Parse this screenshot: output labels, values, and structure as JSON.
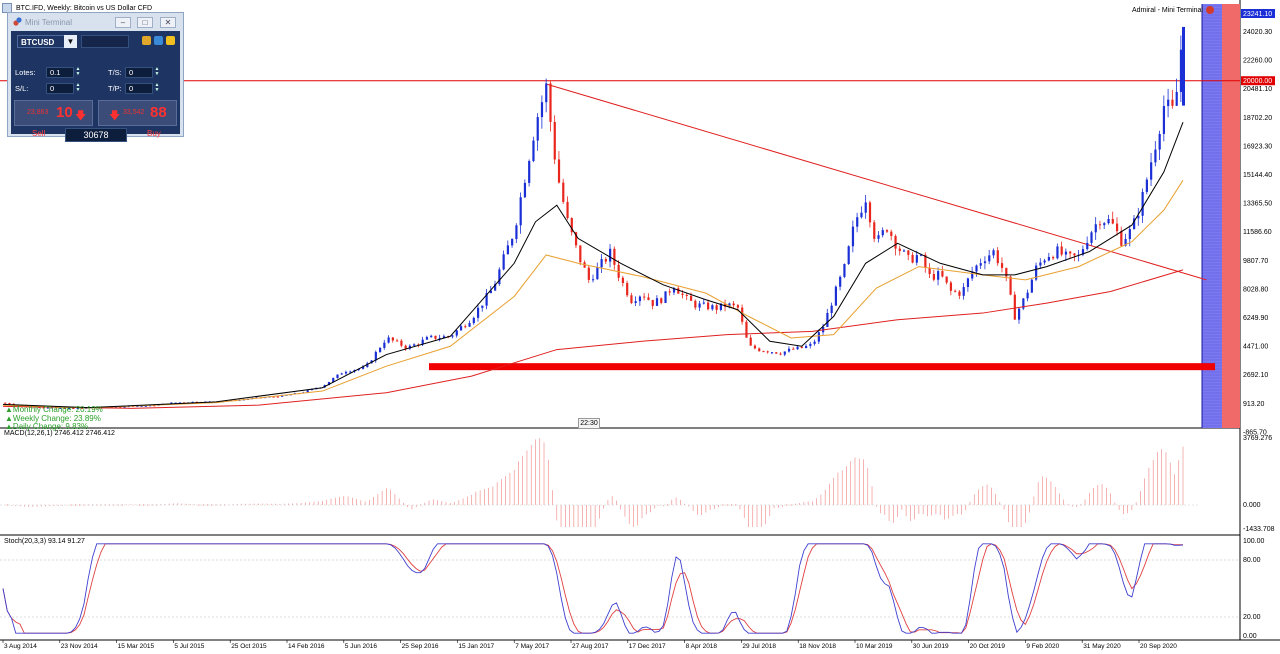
{
  "window": {
    "title": "BTC.IFD, Weekly:  Bitcoin vs US Dollar CFD",
    "corner_label": "Admiral - Mini Terminal"
  },
  "price_axis": {
    "labels": [
      "24020.30",
      "22260.00",
      "20481.10",
      "18702.20",
      "16923.30",
      "15144.40",
      "13365.50",
      "11586.60",
      "9807.70",
      "8028.80",
      "6249.90",
      "4471.00",
      "2692.10",
      "913.20",
      "-865.70"
    ],
    "current_price": "23241.10",
    "line_price": "20000.00",
    "current_color": "#1a2fd6",
    "line_color": "#e00000"
  },
  "date_axis": {
    "labels": [
      "3 Aug 2014",
      "23 Nov 2014",
      "15 Mar 2015",
      "5 Jul 2015",
      "25 Oct 2015",
      "14 Feb 2016",
      "5 Jun 2016",
      "25 Sep 2016",
      "15 Jan 2017",
      "7 May 2017",
      "27 Aug 2017",
      "17 Dec 2017",
      "8 Apr 2018",
      "29 Jul 2018",
      "18 Nov 2018",
      "10 Mar 2019",
      "30 Jun 2019",
      "20 Oct 2019",
      "9 Feb 2020",
      "31 May 2020",
      "20 Sep 2020"
    ]
  },
  "time_tag": "22:30",
  "stats": {
    "monthly": "▲Monthly Change: 20.19%",
    "weekly": "▲Weekly Change: 23.89%",
    "daily": "▲Daily Change: 9.83%"
  },
  "macd": {
    "label": "MACD(12,26,1) 2746.412 2746.412",
    "axis": [
      "3769.276",
      "0.000",
      "-1433.708"
    ]
  },
  "stoch": {
    "label": "Stoch(20,3,3) 93.14 91.27",
    "axis": [
      "100.00",
      "80.00",
      "20.00",
      "0.00"
    ]
  },
  "mini_terminal": {
    "title": "Mini Terminal",
    "symbol": "BTCUSD",
    "lots_label": "Lotes:",
    "lots_value": "0.1",
    "ts_label": "T/S:",
    "ts_value": "0",
    "sl_label": "S/L:",
    "sl_value": "0",
    "tp_label": "T/P:",
    "tp_value": "0",
    "sell_small": "23,863",
    "sell_big": "10",
    "buy_small": "33,542",
    "buy_big": "88",
    "sell_label": "Sell",
    "buy_label": "Buy",
    "volume": "30678"
  },
  "chart_data": {
    "type": "candlestick",
    "x_labels": [
      "3 Aug 2014",
      "23 Nov 2014",
      "15 Mar 2015",
      "5 Jul 2015",
      "25 Oct 2015",
      "14 Feb 2016",
      "5 Jun 2016",
      "25 Sep 2016",
      "15 Jan 2017",
      "7 May 2017",
      "27 Aug 2017",
      "17 Dec 2017",
      "8 Apr 2018",
      "29 Jul 2018",
      "18 Nov 2018",
      "10 Mar 2019",
      "30 Jun 2019",
      "20 Oct 2019",
      "9 Feb 2020",
      "31 May 2020",
      "20 Sep 2020"
    ],
    "ylim": [
      -865.7,
      24020.3
    ],
    "price_path": [
      [
        0,
        600
      ],
      [
        10,
        420
      ],
      [
        20,
        300
      ],
      [
        30,
        250
      ],
      [
        40,
        300
      ],
      [
        50,
        330
      ],
      [
        60,
        400
      ],
      [
        70,
        420
      ],
      [
        80,
        600
      ],
      [
        90,
        650
      ],
      [
        100,
        660
      ],
      [
        110,
        760
      ],
      [
        120,
        900
      ],
      [
        130,
        1000
      ],
      [
        140,
        1200
      ],
      [
        150,
        1600
      ],
      [
        160,
        2500
      ],
      [
        170,
        2700
      ],
      [
        180,
        4500
      ],
      [
        190,
        3900
      ],
      [
        200,
        4500
      ],
      [
        210,
        4600
      ],
      [
        220,
        5700
      ],
      [
        230,
        7500
      ],
      [
        240,
        11000
      ],
      [
        250,
        17500
      ],
      [
        255,
        19600
      ],
      [
        260,
        14500
      ],
      [
        265,
        11500
      ],
      [
        270,
        9500
      ],
      [
        275,
        8000
      ],
      [
        280,
        8800
      ],
      [
        285,
        9600
      ],
      [
        290,
        8000
      ],
      [
        295,
        6800
      ],
      [
        300,
        7200
      ],
      [
        305,
        6600
      ],
      [
        310,
        6900
      ],
      [
        315,
        7700
      ],
      [
        320,
        6900
      ],
      [
        325,
        6500
      ],
      [
        330,
        6400
      ],
      [
        335,
        6300
      ],
      [
        340,
        6500
      ],
      [
        345,
        6300
      ],
      [
        350,
        4000
      ],
      [
        355,
        3800
      ],
      [
        360,
        3700
      ],
      [
        365,
        3600
      ],
      [
        370,
        3800
      ],
      [
        375,
        3900
      ],
      [
        380,
        4100
      ],
      [
        385,
        5200
      ],
      [
        390,
        7000
      ],
      [
        395,
        8700
      ],
      [
        400,
        11500
      ],
      [
        405,
        13000
      ],
      [
        410,
        10200
      ],
      [
        415,
        11200
      ],
      [
        420,
        10000
      ],
      [
        425,
        9200
      ],
      [
        430,
        9500
      ],
      [
        435,
        8200
      ],
      [
        440,
        8300
      ],
      [
        445,
        7300
      ],
      [
        450,
        7200
      ],
      [
        455,
        8500
      ],
      [
        460,
        9300
      ],
      [
        465,
        9700
      ],
      [
        470,
        8500
      ],
      [
        475,
        5800
      ],
      [
        480,
        7000
      ],
      [
        485,
        8700
      ],
      [
        490,
        9500
      ],
      [
        495,
        9700
      ],
      [
        500,
        9300
      ],
      [
        505,
        9400
      ],
      [
        510,
        10800
      ],
      [
        515,
        11700
      ],
      [
        520,
        11500
      ],
      [
        525,
        10400
      ],
      [
        530,
        11000
      ],
      [
        535,
        13000
      ],
      [
        540,
        15700
      ],
      [
        545,
        18500
      ],
      [
        550,
        18000
      ],
      [
        554,
        23241
      ]
    ],
    "sma_black": [
      [
        0,
        500
      ],
      [
        40,
        300
      ],
      [
        100,
        650
      ],
      [
        150,
        1500
      ],
      [
        180,
        3500
      ],
      [
        210,
        4600
      ],
      [
        240,
        9000
      ],
      [
        250,
        11500
      ],
      [
        260,
        12500
      ],
      [
        270,
        10500
      ],
      [
        290,
        9000
      ],
      [
        310,
        7700
      ],
      [
        330,
        6800
      ],
      [
        345,
        6200
      ],
      [
        360,
        4300
      ],
      [
        375,
        4000
      ],
      [
        390,
        5800
      ],
      [
        405,
        9000
      ],
      [
        420,
        10200
      ],
      [
        440,
        9000
      ],
      [
        460,
        8300
      ],
      [
        475,
        8300
      ],
      [
        490,
        8800
      ],
      [
        510,
        9700
      ],
      [
        530,
        11300
      ],
      [
        545,
        14500
      ],
      [
        554,
        17500
      ]
    ],
    "sma_orange": [
      [
        0,
        450
      ],
      [
        40,
        290
      ],
      [
        100,
        600
      ],
      [
        150,
        1300
      ],
      [
        180,
        2800
      ],
      [
        210,
        4000
      ],
      [
        240,
        7000
      ],
      [
        255,
        9500
      ],
      [
        270,
        9000
      ],
      [
        300,
        8200
      ],
      [
        330,
        7200
      ],
      [
        350,
        5800
      ],
      [
        370,
        4500
      ],
      [
        390,
        4700
      ],
      [
        410,
        7500
      ],
      [
        430,
        8800
      ],
      [
        460,
        8300
      ],
      [
        480,
        8000
      ],
      [
        505,
        8800
      ],
      [
        530,
        10300
      ],
      [
        545,
        12200
      ],
      [
        554,
        14000
      ]
    ],
    "sma_red": [
      [
        0,
        380
      ],
      [
        60,
        260
      ],
      [
        120,
        450
      ],
      [
        180,
        1200
      ],
      [
        220,
        2200
      ],
      [
        260,
        3800
      ],
      [
        300,
        4300
      ],
      [
        340,
        4700
      ],
      [
        380,
        4900
      ],
      [
        420,
        5600
      ],
      [
        460,
        6000
      ],
      [
        490,
        6600
      ],
      [
        520,
        7300
      ],
      [
        554,
        8600
      ]
    ],
    "triangle_top": [
      [
        255,
        19800
      ],
      [
        565,
        8000
      ]
    ],
    "support_level": 2800,
    "resistance_level": 20000
  }
}
